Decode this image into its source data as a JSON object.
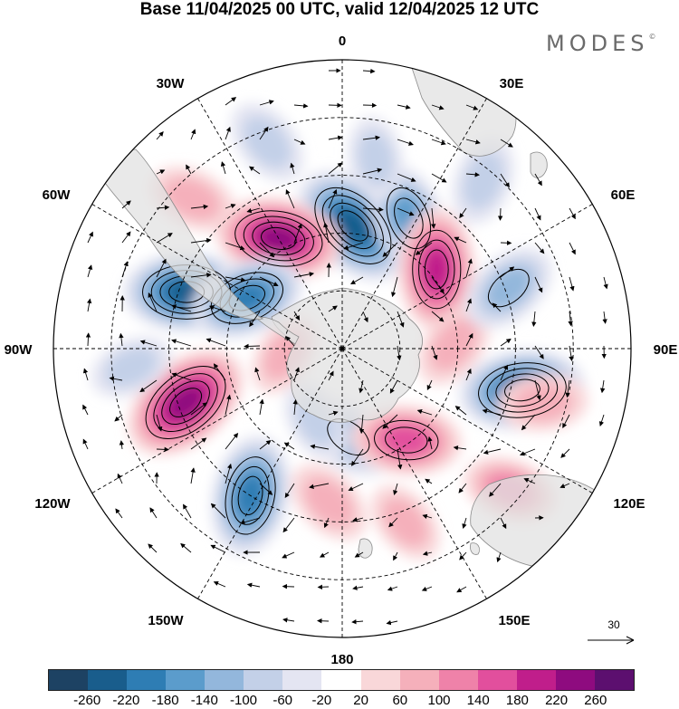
{
  "title": "Base 11/04/2025 00 UTC, valid 12/04/2025 12 UTC",
  "brand": "MODES",
  "brand_mark": "©",
  "longitude_labels": {
    "lon_0": "0",
    "lon_30E": "30E",
    "lon_60E": "60E",
    "lon_90E": "90E",
    "lon_120E": "120E",
    "lon_150E": "150E",
    "lon_180": "180",
    "lon_150W": "150W",
    "lon_120W": "120W",
    "lon_90W": "90W",
    "lon_60W": "60W",
    "lon_30W": "30W"
  },
  "reference_vector": {
    "label": "30"
  },
  "colorbar": {
    "colors": [
      "#1d4263",
      "#195d8c",
      "#2e7db4",
      "#5b9ccc",
      "#93b7dc",
      "#c3d0e8",
      "#e4e5f2",
      "#ffffff",
      "#f9d7d9",
      "#f5b0bb",
      "#ef82a9",
      "#e24f9d",
      "#c01e8b",
      "#8e0b7f",
      "#5c0f6f"
    ],
    "tick_labels": [
      "-260",
      "-220",
      "-180",
      "-140",
      "-100",
      "-60",
      "-20",
      "20",
      "60",
      "100",
      "140",
      "180",
      "220",
      "260"
    ]
  },
  "anomaly_centers": [
    {
      "lon": 5,
      "lat": -58,
      "value": -220
    },
    {
      "lon": 27,
      "lat": -52,
      "value": -140
    },
    {
      "lon": 50,
      "lat": -58,
      "value": 180
    },
    {
      "lon": -30,
      "lat": -57,
      "value": 200
    },
    {
      "lon": -70,
      "lat": -47,
      "value": -200
    },
    {
      "lon": -62,
      "lat": -62,
      "value": -160
    },
    {
      "lon": -109,
      "lat": -47,
      "value": 220
    },
    {
      "lon": -148,
      "lat": -45,
      "value": -180
    },
    {
      "lon": 176,
      "lat": -67,
      "value": -100
    },
    {
      "lon": 145,
      "lat": -61,
      "value": 140
    },
    {
      "lon": 103,
      "lat": -42,
      "value": -200
    },
    {
      "lon": 88,
      "lat": -61,
      "value": 60
    },
    {
      "lon": 70,
      "lat": -44,
      "value": -100
    },
    {
      "lon": 40,
      "lat": -33,
      "value": -60
    },
    {
      "lon": 105,
      "lat": -36,
      "value": 60
    },
    {
      "lon": 130,
      "lat": -33,
      "value": 80
    },
    {
      "lon": -20,
      "lat": -33,
      "value": -60
    },
    {
      "lon": -45,
      "lat": -35,
      "value": 60
    },
    {
      "lon": -96,
      "lat": -75,
      "value": 40
    },
    {
      "lon": -160,
      "lat": -70,
      "value": -40
    },
    {
      "lon": -175,
      "lat": -50,
      "value": 60
    },
    {
      "lon": 160,
      "lat": -42,
      "value": 40
    },
    {
      "lon": -95,
      "lat": -35,
      "value": -40
    },
    {
      "lon": 10,
      "lat": -40,
      "value": -40
    }
  ]
}
